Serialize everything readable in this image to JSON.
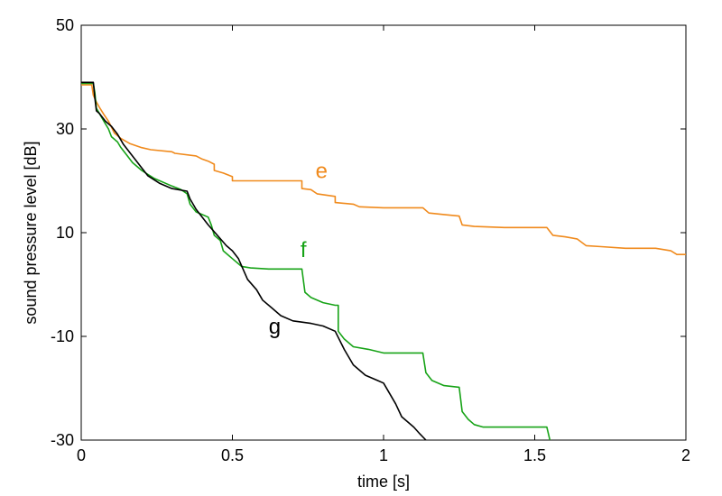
{
  "chart_data": {
    "type": "line",
    "xlabel": "time  [s]",
    "ylabel": "sound pressure level  [dB]",
    "xlim": [
      0,
      2
    ],
    "ylim": [
      -30,
      50
    ],
    "x_ticks": [
      0,
      0.5,
      1,
      1.5,
      2
    ],
    "x_tick_labels": [
      "0",
      "0.5",
      "1",
      "1.5",
      "2"
    ],
    "y_ticks": [
      -30,
      -10,
      10,
      30,
      50
    ],
    "y_tick_labels": [
      "-30",
      "-10",
      "10",
      "30",
      "50"
    ],
    "grid": false,
    "series": [
      {
        "name": "e",
        "color": "#f08a1c",
        "points": [
          [
            0.0,
            38.5
          ],
          [
            0.035,
            38.5
          ],
          [
            0.04,
            36.5
          ],
          [
            0.05,
            35.2
          ],
          [
            0.06,
            34.2
          ],
          [
            0.075,
            32.8
          ],
          [
            0.09,
            31.5
          ],
          [
            0.11,
            29.2
          ],
          [
            0.13,
            28.2
          ],
          [
            0.16,
            27.2
          ],
          [
            0.2,
            26.4
          ],
          [
            0.23,
            26.0
          ],
          [
            0.3,
            25.6
          ],
          [
            0.31,
            25.3
          ],
          [
            0.38,
            24.8
          ],
          [
            0.4,
            24.2
          ],
          [
            0.42,
            23.8
          ],
          [
            0.44,
            23.2
          ],
          [
            0.44,
            22.0
          ],
          [
            0.47,
            21.5
          ],
          [
            0.5,
            20.8
          ],
          [
            0.5,
            20.0
          ],
          [
            0.6,
            20.0
          ],
          [
            0.7,
            20.0
          ],
          [
            0.73,
            20.0
          ],
          [
            0.73,
            18.5
          ],
          [
            0.76,
            18.3
          ],
          [
            0.78,
            17.5
          ],
          [
            0.84,
            17.0
          ],
          [
            0.84,
            15.8
          ],
          [
            0.9,
            15.5
          ],
          [
            0.92,
            15.0
          ],
          [
            1.0,
            14.8
          ],
          [
            1.1,
            14.8
          ],
          [
            1.13,
            14.8
          ],
          [
            1.15,
            13.8
          ],
          [
            1.2,
            13.5
          ],
          [
            1.25,
            13.2
          ],
          [
            1.26,
            11.5
          ],
          [
            1.3,
            11.2
          ],
          [
            1.4,
            11.0
          ],
          [
            1.5,
            11.0
          ],
          [
            1.54,
            11.0
          ],
          [
            1.56,
            9.5
          ],
          [
            1.6,
            9.2
          ],
          [
            1.64,
            8.8
          ],
          [
            1.67,
            7.5
          ],
          [
            1.72,
            7.3
          ],
          [
            1.8,
            7.0
          ],
          [
            1.9,
            7.0
          ],
          [
            1.95,
            6.5
          ],
          [
            1.97,
            5.8
          ],
          [
            2.0,
            5.8
          ]
        ]
      },
      {
        "name": "f",
        "color": "#17a317",
        "points": [
          [
            0.0,
            38.8
          ],
          [
            0.04,
            38.8
          ],
          [
            0.045,
            37.0
          ],
          [
            0.05,
            34.0
          ],
          [
            0.06,
            33.0
          ],
          [
            0.08,
            31.0
          ],
          [
            0.09,
            30.0
          ],
          [
            0.1,
            28.5
          ],
          [
            0.12,
            27.5
          ],
          [
            0.13,
            26.5
          ],
          [
            0.15,
            25.0
          ],
          [
            0.17,
            23.5
          ],
          [
            0.2,
            22.0
          ],
          [
            0.24,
            20.5
          ],
          [
            0.3,
            19.0
          ],
          [
            0.33,
            18.3
          ],
          [
            0.35,
            17.5
          ],
          [
            0.36,
            15.5
          ],
          [
            0.38,
            14.0
          ],
          [
            0.4,
            13.5
          ],
          [
            0.42,
            13.0
          ],
          [
            0.43,
            11.5
          ],
          [
            0.44,
            9.5
          ],
          [
            0.46,
            8.5
          ],
          [
            0.47,
            6.5
          ],
          [
            0.5,
            5.0
          ],
          [
            0.53,
            3.5
          ],
          [
            0.56,
            3.2
          ],
          [
            0.62,
            3.0
          ],
          [
            0.72,
            3.0
          ],
          [
            0.73,
            3.0
          ],
          [
            0.74,
            -1.5
          ],
          [
            0.76,
            -2.5
          ],
          [
            0.8,
            -3.5
          ],
          [
            0.84,
            -4.0
          ],
          [
            0.85,
            -4.0
          ],
          [
            0.85,
            -9.0
          ],
          [
            0.87,
            -10.5
          ],
          [
            0.9,
            -12.0
          ],
          [
            0.95,
            -12.5
          ],
          [
            1.0,
            -13.2
          ],
          [
            1.1,
            -13.2
          ],
          [
            1.13,
            -13.2
          ],
          [
            1.14,
            -17.0
          ],
          [
            1.16,
            -18.5
          ],
          [
            1.2,
            -19.5
          ],
          [
            1.25,
            -19.8
          ],
          [
            1.26,
            -24.5
          ],
          [
            1.28,
            -26.0
          ],
          [
            1.3,
            -27.0
          ],
          [
            1.33,
            -27.5
          ],
          [
            1.4,
            -27.5
          ],
          [
            1.5,
            -27.5
          ],
          [
            1.54,
            -27.5
          ],
          [
            1.55,
            -30.0
          ]
        ]
      },
      {
        "name": "g",
        "color": "#000000",
        "points": [
          [
            0.0,
            39.0
          ],
          [
            0.04,
            39.0
          ],
          [
            0.045,
            36.0
          ],
          [
            0.05,
            33.5
          ],
          [
            0.06,
            33.0
          ],
          [
            0.08,
            31.5
          ],
          [
            0.1,
            30.5
          ],
          [
            0.12,
            29.0
          ],
          [
            0.14,
            27.0
          ],
          [
            0.16,
            25.5
          ],
          [
            0.18,
            24.0
          ],
          [
            0.22,
            21.0
          ],
          [
            0.26,
            19.5
          ],
          [
            0.3,
            18.5
          ],
          [
            0.35,
            18.0
          ],
          [
            0.36,
            16.5
          ],
          [
            0.38,
            14.5
          ],
          [
            0.42,
            11.5
          ],
          [
            0.45,
            9.5
          ],
          [
            0.48,
            7.5
          ],
          [
            0.5,
            6.5
          ],
          [
            0.52,
            5.0
          ],
          [
            0.55,
            1.0
          ],
          [
            0.58,
            -1.0
          ],
          [
            0.6,
            -3.0
          ],
          [
            0.63,
            -4.5
          ],
          [
            0.66,
            -6.0
          ],
          [
            0.7,
            -7.0
          ],
          [
            0.76,
            -7.5
          ],
          [
            0.8,
            -8.0
          ],
          [
            0.84,
            -9.0
          ],
          [
            0.87,
            -12.5
          ],
          [
            0.9,
            -15.5
          ],
          [
            0.94,
            -17.5
          ],
          [
            0.98,
            -18.5
          ],
          [
            1.0,
            -19.0
          ],
          [
            1.02,
            -21.0
          ],
          [
            1.04,
            -23.0
          ],
          [
            1.06,
            -25.5
          ],
          [
            1.08,
            -26.5
          ],
          [
            1.1,
            -27.5
          ],
          [
            1.12,
            -28.8
          ],
          [
            1.14,
            -30.0
          ]
        ]
      }
    ],
    "annotations": [
      {
        "text": "e",
        "x": 0.775,
        "y": 20.5,
        "color": "#f08a1c"
      },
      {
        "text": "f",
        "x": 0.725,
        "y": 5.3,
        "color": "#17a317"
      },
      {
        "text": "g",
        "x": 0.62,
        "y": -9.5,
        "color": "#000000"
      }
    ]
  }
}
